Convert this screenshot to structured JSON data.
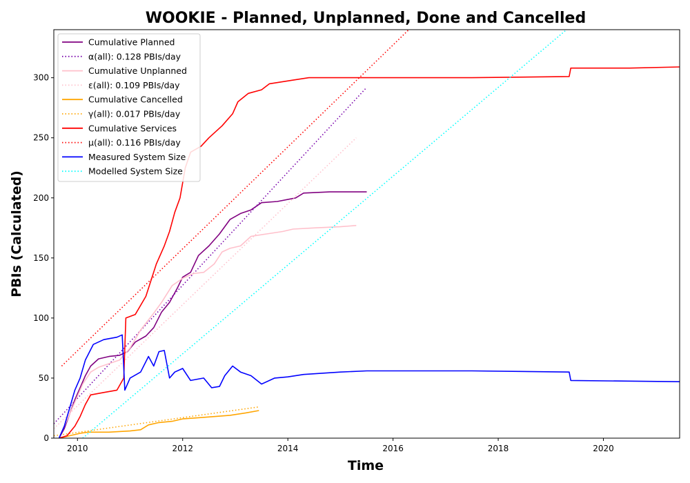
{
  "chart_data": {
    "type": "line",
    "title": "WOOKIE - Planned, Unplanned, Done  and Cancelled",
    "xlabel": "Time",
    "ylabel": "PBIs (Calculated)",
    "xlim": [
      2009.55,
      2021.45
    ],
    "ylim": [
      0,
      340
    ],
    "x_ticks": [
      2010,
      2012,
      2014,
      2016,
      2018,
      2020
    ],
    "y_ticks": [
      0,
      50,
      100,
      150,
      200,
      250,
      300
    ],
    "grid": false,
    "legend_position": "top-left",
    "series": [
      {
        "name": "Cumulative Planned",
        "color": "#800080",
        "style": "solid",
        "points": [
          [
            2009.65,
            0
          ],
          [
            2009.75,
            8
          ],
          [
            2009.85,
            20
          ],
          [
            2009.95,
            32
          ],
          [
            2010.05,
            42
          ],
          [
            2010.15,
            52
          ],
          [
            2010.25,
            60
          ],
          [
            2010.4,
            66
          ],
          [
            2010.6,
            68
          ],
          [
            2010.8,
            69
          ],
          [
            2010.95,
            72
          ],
          [
            2011.1,
            80
          ],
          [
            2011.3,
            85
          ],
          [
            2011.45,
            92
          ],
          [
            2011.6,
            105
          ],
          [
            2011.75,
            113
          ],
          [
            2011.9,
            125
          ],
          [
            2012.0,
            134
          ],
          [
            2012.15,
            138
          ],
          [
            2012.3,
            152
          ],
          [
            2012.5,
            160
          ],
          [
            2012.7,
            170
          ],
          [
            2012.9,
            182
          ],
          [
            2013.1,
            187
          ],
          [
            2013.3,
            190
          ],
          [
            2013.5,
            196
          ],
          [
            2013.8,
            197
          ],
          [
            2014.15,
            200
          ],
          [
            2014.3,
            204
          ],
          [
            2014.8,
            205
          ],
          [
            2015.5,
            205
          ]
        ]
      },
      {
        "name": "α(all): 0.128 PBIs/day",
        "color": "#7700aa",
        "style": "dotted",
        "points": [
          [
            2009.55,
            12
          ],
          [
            2015.5,
            292
          ]
        ]
      },
      {
        "name": "Cumulative Unplanned",
        "color": "#ffc0cb",
        "style": "solid",
        "points": [
          [
            2009.65,
            0
          ],
          [
            2009.8,
            15
          ],
          [
            2009.95,
            30
          ],
          [
            2010.1,
            45
          ],
          [
            2010.25,
            55
          ],
          [
            2010.4,
            59
          ],
          [
            2010.6,
            62
          ],
          [
            2010.8,
            65
          ],
          [
            2011.0,
            75
          ],
          [
            2011.2,
            90
          ],
          [
            2011.45,
            104
          ],
          [
            2011.6,
            113
          ],
          [
            2011.8,
            127
          ],
          [
            2012.0,
            133
          ],
          [
            2012.2,
            137
          ],
          [
            2012.4,
            138
          ],
          [
            2012.6,
            145
          ],
          [
            2012.75,
            155
          ],
          [
            2012.9,
            158
          ],
          [
            2013.1,
            160
          ],
          [
            2013.3,
            168
          ],
          [
            2013.6,
            170
          ],
          [
            2013.9,
            172
          ],
          [
            2014.1,
            174
          ],
          [
            2014.5,
            175
          ],
          [
            2015.0,
            176
          ],
          [
            2015.3,
            177
          ]
        ]
      },
      {
        "name": "ε(all): 0.109 PBIs/day",
        "color": "#ffc0cb",
        "style": "dotted",
        "points": [
          [
            2009.55,
            8
          ],
          [
            2015.3,
            250
          ]
        ]
      },
      {
        "name": "Cumulative Cancelled",
        "color": "#ffa500",
        "style": "solid",
        "points": [
          [
            2009.65,
            0
          ],
          [
            2009.85,
            2
          ],
          [
            2010.05,
            4
          ],
          [
            2010.2,
            5
          ],
          [
            2010.6,
            5
          ],
          [
            2011.0,
            6
          ],
          [
            2011.2,
            7
          ],
          [
            2011.35,
            11
          ],
          [
            2011.55,
            13
          ],
          [
            2011.8,
            14
          ],
          [
            2012.0,
            16
          ],
          [
            2012.3,
            17
          ],
          [
            2012.6,
            18
          ],
          [
            2012.9,
            19
          ],
          [
            2013.2,
            21
          ],
          [
            2013.45,
            23
          ]
        ]
      },
      {
        "name": "γ(all): 0.017 PBIs/day",
        "color": "#ffa500",
        "style": "dotted",
        "points": [
          [
            2009.55,
            2
          ],
          [
            2013.45,
            26
          ]
        ]
      },
      {
        "name": "Cumulative Services",
        "color": "#ff0000",
        "style": "solid",
        "points": [
          [
            2009.65,
            0
          ],
          [
            2009.8,
            2
          ],
          [
            2009.95,
            10
          ],
          [
            2010.05,
            18
          ],
          [
            2010.15,
            28
          ],
          [
            2010.25,
            36
          ],
          [
            2010.5,
            38
          ],
          [
            2010.75,
            40
          ],
          [
            2010.88,
            50
          ],
          [
            2010.92,
            100
          ],
          [
            2011.1,
            103
          ],
          [
            2011.3,
            118
          ],
          [
            2011.5,
            145
          ],
          [
            2011.65,
            160
          ],
          [
            2011.75,
            172
          ],
          [
            2011.85,
            188
          ],
          [
            2011.95,
            200
          ],
          [
            2012.05,
            225
          ],
          [
            2012.15,
            238
          ],
          [
            2012.35,
            243
          ],
          [
            2012.5,
            250
          ],
          [
            2012.75,
            260
          ],
          [
            2012.95,
            270
          ],
          [
            2013.05,
            280
          ],
          [
            2013.25,
            287
          ],
          [
            2013.5,
            290
          ],
          [
            2013.65,
            295
          ],
          [
            2014.1,
            298
          ],
          [
            2014.4,
            300
          ],
          [
            2015.5,
            300
          ],
          [
            2017.5,
            300
          ],
          [
            2019.35,
            301
          ],
          [
            2019.38,
            308
          ],
          [
            2020.5,
            308
          ],
          [
            2021.45,
            309
          ]
        ]
      },
      {
        "name": "μ(all): 0.116 PBIs/day",
        "color": "#ff0000",
        "style": "dotted",
        "points": [
          [
            2009.7,
            60
          ],
          [
            2016.3,
            340
          ]
        ]
      },
      {
        "name": "Measured System Size",
        "color": "#0000ff",
        "style": "solid",
        "points": [
          [
            2009.65,
            0
          ],
          [
            2009.75,
            10
          ],
          [
            2009.85,
            25
          ],
          [
            2009.95,
            40
          ],
          [
            2010.05,
            50
          ],
          [
            2010.15,
            65
          ],
          [
            2010.3,
            78
          ],
          [
            2010.5,
            82
          ],
          [
            2010.75,
            84
          ],
          [
            2010.85,
            86
          ],
          [
            2010.9,
            40
          ],
          [
            2011.0,
            50
          ],
          [
            2011.2,
            55
          ],
          [
            2011.35,
            68
          ],
          [
            2011.45,
            60
          ],
          [
            2011.55,
            72
          ],
          [
            2011.65,
            73
          ],
          [
            2011.75,
            50
          ],
          [
            2011.85,
            55
          ],
          [
            2012.0,
            58
          ],
          [
            2012.15,
            48
          ],
          [
            2012.4,
            50
          ],
          [
            2012.55,
            42
          ],
          [
            2012.7,
            43
          ],
          [
            2012.8,
            52
          ],
          [
            2012.95,
            60
          ],
          [
            2013.1,
            55
          ],
          [
            2013.3,
            52
          ],
          [
            2013.5,
            45
          ],
          [
            2013.75,
            50
          ],
          [
            2014.0,
            51
          ],
          [
            2014.3,
            53
          ],
          [
            2015.0,
            55
          ],
          [
            2015.5,
            56
          ],
          [
            2017.5,
            56
          ],
          [
            2019.35,
            55
          ],
          [
            2019.38,
            48
          ],
          [
            2021.45,
            47
          ]
        ]
      },
      {
        "name": "Modelled System Size",
        "color": "#00ffff",
        "style": "dotted",
        "points": [
          [
            2010.1,
            0
          ],
          [
            2019.3,
            340
          ]
        ]
      }
    ]
  }
}
